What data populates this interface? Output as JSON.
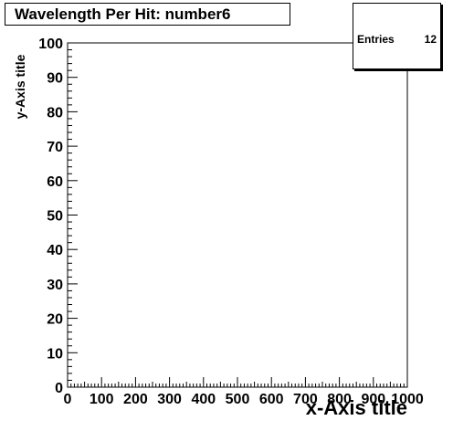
{
  "chart_data": {
    "type": "bar",
    "title": "Wavelength Per Hit: number6",
    "xlabel": "x-Axis title",
    "ylabel": "y-Axis title",
    "xlim": [
      0,
      1000
    ],
    "ylim": [
      0,
      100
    ],
    "x_ticks": [
      "0",
      "100",
      "200",
      "300",
      "400",
      "500",
      "600",
      "700",
      "800",
      "900",
      "1000"
    ],
    "y_ticks": [
      "0",
      "10",
      "20",
      "30",
      "40",
      "50",
      "60",
      "70",
      "80",
      "90",
      "100"
    ],
    "bins": [],
    "grid": false
  },
  "stats": {
    "entries_label": "Entries",
    "entries_value": "12"
  }
}
